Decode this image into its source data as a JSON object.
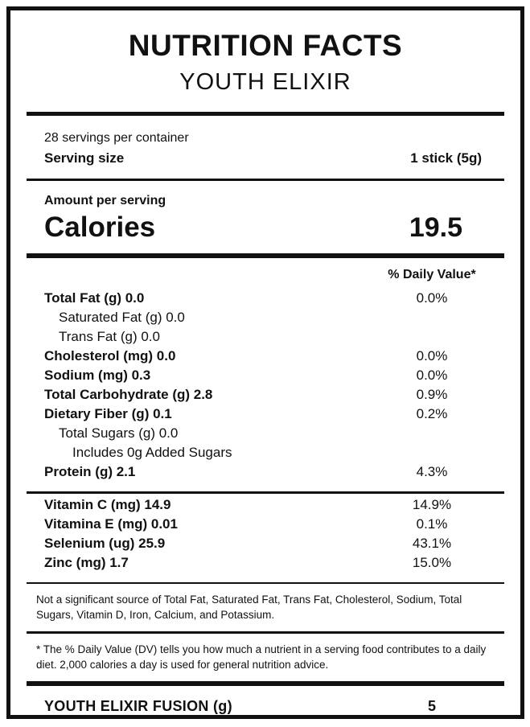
{
  "label": {
    "title": "NUTRITION FACTS",
    "subtitle": "YOUTH ELIXIR",
    "servings_per_container": "28 servings per container",
    "serving_size_label": "Serving size",
    "serving_size_value": "1 stick (5g)",
    "amount_per_serving": "Amount per serving",
    "calories_label": "Calories",
    "calories_value": "19.5",
    "daily_value_header": "% Daily Value*",
    "nutrients": [
      {
        "name": "Total Fat (g) 0.0",
        "dv": "0.0%",
        "bold": true,
        "indent": 0
      },
      {
        "name": "Saturated Fat (g) 0.0",
        "dv": "",
        "bold": false,
        "indent": 1
      },
      {
        "name": "Trans Fat (g) 0.0",
        "dv": "",
        "bold": false,
        "indent": 1
      },
      {
        "name": "Cholesterol (mg) 0.0",
        "dv": "0.0%",
        "bold": true,
        "indent": 0
      },
      {
        "name": "Sodium (mg) 0.3",
        "dv": "0.0%",
        "bold": true,
        "indent": 0
      },
      {
        "name": "Total Carbohydrate (g) 2.8",
        "dv": "0.9%",
        "bold": true,
        "indent": 0
      },
      {
        "name": "Dietary Fiber (g) 0.1",
        "dv": "0.2%",
        "bold": true,
        "indent": 0
      },
      {
        "name": "Total Sugars (g) 0.0",
        "dv": "",
        "bold": false,
        "indent": 1
      },
      {
        "name": "Includes 0g Added Sugars",
        "dv": "",
        "bold": false,
        "indent": 2
      },
      {
        "name": "Protein (g) 2.1",
        "dv": "4.3%",
        "bold": true,
        "indent": 0
      }
    ],
    "micronutrients": [
      {
        "name": "Vitamin C (mg) 14.9",
        "dv": "14.9%",
        "bold": true,
        "indent": 0
      },
      {
        "name": "Vitamina E (mg) 0.01",
        "dv": "0.1%",
        "bold": true,
        "indent": 0
      },
      {
        "name": "Selenium (ug) 25.9",
        "dv": "43.1%",
        "bold": true,
        "indent": 0
      },
      {
        "name": "Zinc (mg) 1.7",
        "dv": "15.0%",
        "bold": true,
        "indent": 0
      }
    ],
    "not_significant_note": "Not a significant source of Total Fat, Saturated Fat, Trans Fat, Cholesterol, Sodium, Total Sugars, Vitamin D, Iron, Calcium, and Potassium.",
    "daily_value_note": "* The % Daily Value (DV) tells you how much a nutrient in a serving food contributes to a daily diet. 2,000 calories a day is used for general nutrition advice.",
    "footer_label": "YOUTH ELIXIR FUSION (g)",
    "footer_value": "5",
    "colors": {
      "ink": "#111111",
      "background": "#ffffff"
    }
  }
}
